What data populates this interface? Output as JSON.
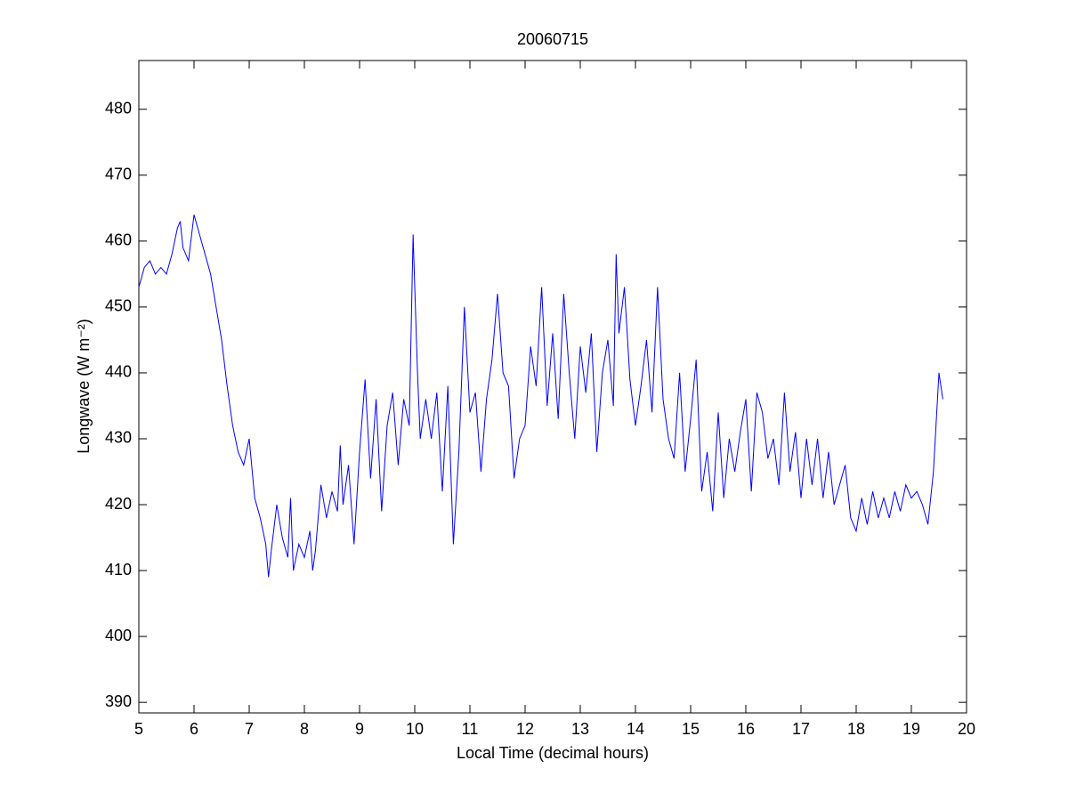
{
  "chart_data": {
    "type": "line",
    "title": "20060715",
    "xlabel": "Local Time (decimal hours)",
    "ylabel": "Longwave (W m⁻²)",
    "x": [
      5.0,
      5.1,
      5.2,
      5.3,
      5.4,
      5.5,
      5.6,
      5.7,
      5.75,
      5.8,
      5.9,
      6.0,
      6.1,
      6.2,
      6.3,
      6.4,
      6.5,
      6.6,
      6.7,
      6.8,
      6.9,
      7.0,
      7.1,
      7.2,
      7.3,
      7.35,
      7.4,
      7.5,
      7.6,
      7.7,
      7.75,
      7.8,
      7.9,
      8.0,
      8.1,
      8.15,
      8.2,
      8.3,
      8.4,
      8.5,
      8.6,
      8.65,
      8.7,
      8.8,
      8.9,
      9.0,
      9.1,
      9.2,
      9.3,
      9.4,
      9.5,
      9.6,
      9.7,
      9.8,
      9.9,
      9.97,
      10.05,
      10.1,
      10.2,
      10.3,
      10.4,
      10.5,
      10.6,
      10.7,
      10.8,
      10.9,
      11.0,
      11.1,
      11.2,
      11.3,
      11.4,
      11.5,
      11.6,
      11.7,
      11.8,
      11.9,
      12.0,
      12.1,
      12.2,
      12.3,
      12.4,
      12.5,
      12.6,
      12.7,
      12.8,
      12.9,
      13.0,
      13.1,
      13.2,
      13.3,
      13.4,
      13.5,
      13.6,
      13.65,
      13.7,
      13.8,
      13.9,
      14.0,
      14.1,
      14.2,
      14.3,
      14.4,
      14.5,
      14.6,
      14.7,
      14.8,
      14.9,
      15.0,
      15.1,
      15.2,
      15.3,
      15.4,
      15.5,
      15.6,
      15.7,
      15.8,
      15.9,
      16.0,
      16.1,
      16.2,
      16.3,
      16.4,
      16.5,
      16.6,
      16.7,
      16.8,
      16.9,
      17.0,
      17.1,
      17.2,
      17.3,
      17.4,
      17.5,
      17.6,
      17.7,
      17.8,
      17.9,
      18.0,
      18.1,
      18.2,
      18.3,
      18.4,
      18.5,
      18.6,
      18.7,
      18.8,
      18.9,
      19.0,
      19.1,
      19.2,
      19.3,
      19.4,
      19.5,
      19.57
    ],
    "series": [
      {
        "color": "#0000ff",
        "values": [
          453,
          456,
          457,
          455,
          456,
          455,
          458,
          462,
          463,
          459,
          457,
          464,
          461,
          458,
          455,
          450,
          445,
          438,
          432,
          428,
          426,
          430,
          421,
          418,
          414,
          409,
          413,
          420,
          415,
          412,
          421,
          410,
          414,
          412,
          416,
          410,
          413,
          423,
          418,
          422,
          419,
          429,
          420,
          426,
          414,
          428,
          439,
          424,
          436,
          419,
          432,
          437,
          426,
          436,
          432,
          461,
          440,
          430,
          436,
          430,
          437,
          422,
          438,
          414,
          428,
          450,
          434,
          437,
          425,
          436,
          442,
          452,
          440,
          438,
          424,
          430,
          432,
          444,
          438,
          453,
          435,
          446,
          433,
          452,
          440,
          430,
          444,
          437,
          446,
          428,
          440,
          445,
          435,
          458,
          446,
          453,
          439,
          432,
          438,
          445,
          434,
          453,
          436,
          430,
          427,
          440,
          425,
          433,
          442,
          422,
          428,
          419,
          434,
          421,
          430,
          425,
          431,
          436,
          422,
          437,
          434,
          427,
          430,
          423,
          437,
          425,
          431,
          421,
          430,
          423,
          430,
          421,
          428,
          420,
          423,
          426,
          418,
          416,
          421,
          417,
          422,
          418,
          421,
          418,
          422,
          419,
          423,
          421,
          422,
          420,
          417,
          425,
          440,
          436
        ]
      }
    ],
    "xlim": [
      5,
      20
    ],
    "ylim": [
      388.4,
      487.4
    ],
    "xticks": [
      5,
      6,
      7,
      8,
      9,
      10,
      11,
      12,
      13,
      14,
      15,
      16,
      17,
      18,
      19,
      20
    ],
    "yticks": [
      390,
      400,
      410,
      420,
      430,
      440,
      450,
      460,
      470,
      480
    ]
  }
}
